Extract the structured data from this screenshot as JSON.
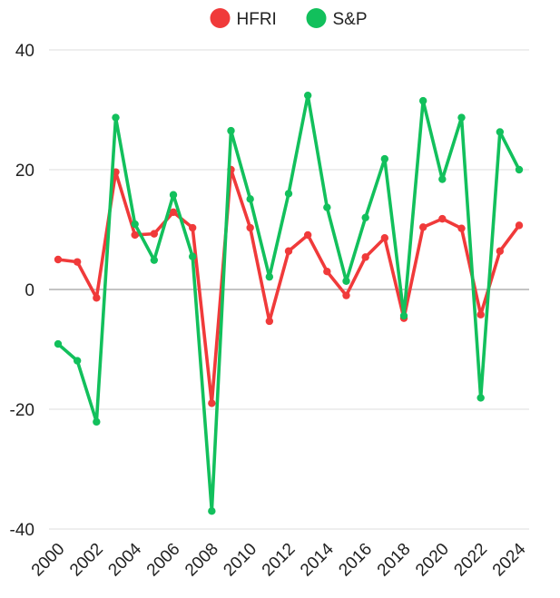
{
  "chart_data": {
    "type": "line",
    "x": [
      2000,
      2001,
      2002,
      2003,
      2004,
      2005,
      2006,
      2007,
      2008,
      2009,
      2010,
      2011,
      2012,
      2013,
      2014,
      2015,
      2016,
      2017,
      2018,
      2019,
      2020,
      2021,
      2022,
      2023,
      2024
    ],
    "series": [
      {
        "name": "HFRI",
        "color": "#f03a3a",
        "values": [
          5.0,
          4.6,
          -1.4,
          19.6,
          9.1,
          9.3,
          12.9,
          10.3,
          -19.0,
          20.0,
          10.3,
          -5.3,
          6.4,
          9.1,
          3.0,
          -1.0,
          5.4,
          8.6,
          -4.8,
          10.4,
          11.8,
          10.2,
          -4.2,
          6.4,
          10.7
        ]
      },
      {
        "name": "S&P",
        "color": "#12c05c",
        "values": [
          -9.1,
          -11.9,
          -22.1,
          28.7,
          10.9,
          4.9,
          15.8,
          5.5,
          -37.0,
          26.5,
          15.1,
          2.1,
          16.0,
          32.4,
          13.7,
          1.4,
          12.0,
          21.8,
          -4.4,
          31.5,
          18.4,
          28.7,
          -18.1,
          26.3,
          20.0
        ]
      }
    ],
    "ylim": [
      -40,
      40
    ],
    "y_ticks": [
      -40,
      -20,
      0,
      20,
      40
    ],
    "x_ticks": [
      2000,
      2002,
      2004,
      2006,
      2008,
      2010,
      2012,
      2014,
      2016,
      2018,
      2020,
      2022,
      2024
    ],
    "grid": true,
    "zero_line": true,
    "legend_position": "top-center",
    "title": "",
    "xlabel": "",
    "ylabel": ""
  }
}
